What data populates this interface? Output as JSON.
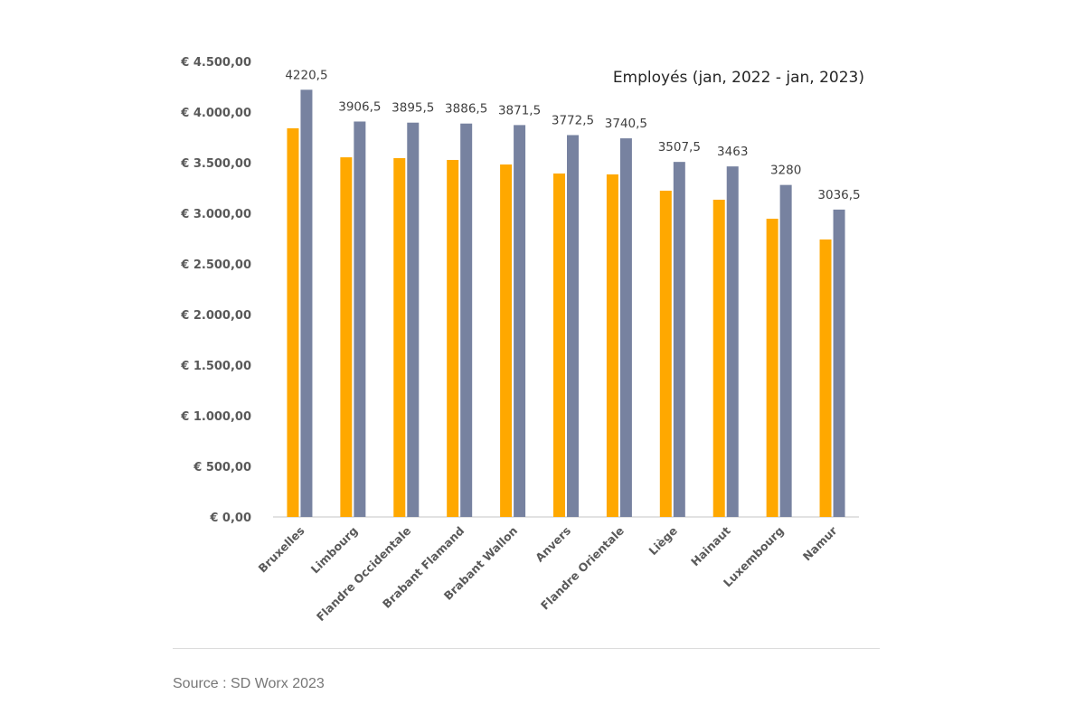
{
  "chart_data": {
    "type": "bar",
    "title": "Employés (jan, 2022 - jan, 2023)",
    "xlabel": "",
    "ylabel": "",
    "ylim": [
      0,
      4500
    ],
    "yticks": [
      0,
      500,
      1000,
      1500,
      2000,
      2500,
      3000,
      3500,
      4000,
      4500
    ],
    "ytick_labels": [
      "€ 0,00",
      "€ 500,00",
      "€ 1.000,00",
      "€ 1.500,00",
      "€ 2.000,00",
      "€ 2.500,00",
      "€ 3.000,00",
      "€ 3.500,00",
      "€ 4.000,00",
      "€ 4.500,00"
    ],
    "grid": false,
    "categories": [
      "Bruxelles",
      "Limbourg",
      "Flandre Occidentale",
      "Brabant Flamand",
      "Brabant Wallon",
      "Anvers",
      "Flandre Orientale",
      "Liège",
      "Hainaut",
      "Luxembourg",
      "Namur"
    ],
    "series": [
      {
        "name": "jan 2022",
        "color": "#FFA800",
        "values": [
          3840,
          3553,
          3545,
          3527,
          3482,
          3393,
          3384,
          3223,
          3134,
          2946,
          2741
        ],
        "labels": null
      },
      {
        "name": "jan 2023",
        "color": "#7782A0",
        "values": [
          4220.5,
          3906.5,
          3895.5,
          3886.5,
          3871.5,
          3772.5,
          3740.5,
          3507.5,
          3463,
          3280,
          3036.5
        ],
        "labels": [
          "4220,5",
          "3906,5",
          "3895,5",
          "3886,5",
          "3871,5",
          "3772,5",
          "3740,5",
          "3507,5",
          "3463",
          "3280",
          "3036,5"
        ]
      }
    ]
  },
  "source": "Source : SD Worx 2023"
}
